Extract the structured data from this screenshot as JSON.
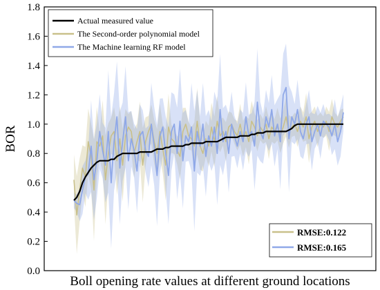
{
  "chart_data": {
    "type": "line",
    "xlabel": "Boll opening rate values at different ground locations",
    "ylabel": "BOR",
    "ylim": [
      0,
      1.8
    ],
    "yticks": [
      "0.0",
      "0.2",
      "0.4",
      "0.6",
      "0.8",
      "1.0",
      "1.2",
      "1.4",
      "1.6",
      "1.8"
    ],
    "legend_position": "top-left",
    "series": [
      {
        "name": "Actual measured value",
        "color": "#000000",
        "values": [
          0.48,
          0.5,
          0.54,
          0.6,
          0.64,
          0.67,
          0.7,
          0.72,
          0.74,
          0.75,
          0.75,
          0.75,
          0.75,
          0.76,
          0.76,
          0.78,
          0.79,
          0.8,
          0.8,
          0.8,
          0.8,
          0.8,
          0.8,
          0.81,
          0.81,
          0.81,
          0.81,
          0.81,
          0.82,
          0.83,
          0.83,
          0.83,
          0.84,
          0.84,
          0.85,
          0.85,
          0.85,
          0.85,
          0.85,
          0.86,
          0.86,
          0.87,
          0.87,
          0.87,
          0.87,
          0.87,
          0.88,
          0.88,
          0.88,
          0.88,
          0.88,
          0.89,
          0.9,
          0.91,
          0.91,
          0.91,
          0.91,
          0.91,
          0.92,
          0.92,
          0.92,
          0.92,
          0.93,
          0.93,
          0.94,
          0.94,
          0.94,
          0.95,
          0.95,
          0.95,
          0.95,
          0.95,
          0.95,
          0.95,
          0.95,
          0.96,
          0.97,
          0.99,
          1.0,
          1.0,
          1.0,
          1.0,
          1.0,
          1.0,
          1.0,
          1.0,
          1.0,
          1.0,
          1.0,
          1.0,
          1.0,
          1.0,
          1.0,
          1.0,
          1.0
        ]
      },
      {
        "name": "The Second-order polynomial model",
        "color": "#c9c08a",
        "rmse": "RMSE:0.122",
        "values": [
          0.62,
          0.38,
          0.55,
          0.7,
          0.64,
          0.88,
          0.78,
          0.55,
          0.88,
          0.85,
          0.92,
          0.62,
          0.8,
          0.92,
          0.95,
          0.75,
          0.9,
          0.72,
          0.92,
          0.98,
          0.95,
          0.8,
          0.88,
          0.95,
          0.72,
          0.88,
          0.95,
          1.0,
          0.88,
          0.8,
          0.95,
          0.83,
          0.72,
          0.98,
          0.9,
          0.88,
          0.82,
          0.78,
          0.95,
          1.0,
          0.92,
          0.9,
          0.85,
          1.02,
          0.85,
          0.8,
          0.9,
          0.85,
          0.98,
          0.88,
          1.02,
          0.92,
          0.95,
          0.88,
          0.98,
          1.0,
          0.95,
          0.92,
          1.0,
          0.9,
          0.95,
          0.88,
          1.02,
          0.98,
          0.92,
          0.98,
          0.95,
          1.0,
          0.9,
          0.98,
          0.95,
          1.0,
          0.92,
          0.98,
          1.05,
          0.95,
          0.98,
          1.0,
          0.95,
          1.02,
          0.98,
          1.05,
          0.9,
          0.98,
          1.02,
          0.95,
          1.0,
          0.98,
          1.02,
          0.95,
          1.05,
          1.0,
          0.98,
          1.02,
          1.05
        ]
      },
      {
        "name": "The Machine learning RF model",
        "color": "#8fa8e8",
        "rmse": "RMSE:0.165",
        "values": [
          0.48,
          0.46,
          0.45,
          0.55,
          0.64,
          0.66,
          0.85,
          0.62,
          0.75,
          0.95,
          0.82,
          0.72,
          0.95,
          0.6,
          0.88,
          1.05,
          0.7,
          0.88,
          1.05,
          0.75,
          0.9,
          0.82,
          0.68,
          0.92,
          0.95,
          0.82,
          0.78,
          1.0,
          0.85,
          0.65,
          0.92,
          0.98,
          0.8,
          0.65,
          0.95,
          1.0,
          0.8,
          1.02,
          0.75,
          0.92,
          0.88,
          0.98,
          0.68,
          0.95,
          0.85,
          1.0,
          0.78,
          0.92,
          0.85,
          0.98,
          0.8,
          1.1,
          0.88,
          0.95,
          0.8,
          1.0,
          0.92,
          0.85,
          0.95,
          0.88,
          1.05,
          0.92,
          0.95,
          0.85,
          1.15,
          0.95,
          0.9,
          1.05,
          0.98,
          1.1,
          0.92,
          1.0,
          0.88,
          1.2,
          1.25,
          0.9,
          1.05,
          1.0,
          1.1,
          0.95,
          0.9,
          1.0,
          1.05,
          0.88,
          0.95,
          1.0,
          0.92,
          1.02,
          1.0,
          0.98,
          0.92,
          1.0,
          0.88,
          0.95,
          1.08
        ]
      }
    ]
  }
}
